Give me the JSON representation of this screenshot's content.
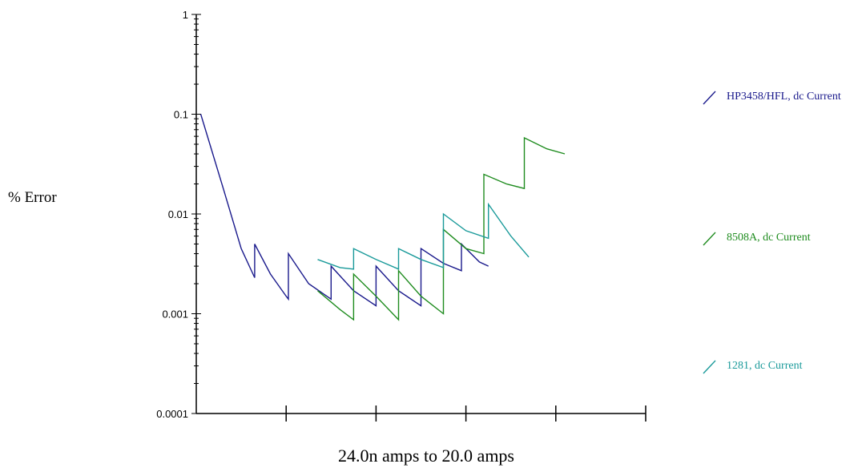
{
  "chart_data": {
    "type": "line",
    "ylabel": "% Error",
    "xlabel": "24.0n amps to 20.0 amps",
    "yscale": "log",
    "ylim": [
      0.0001,
      1
    ],
    "yticks": [
      "1",
      "0.1",
      "0.01",
      "0.001",
      "0.0001"
    ],
    "xlim": [
      0,
      10
    ],
    "grid": false,
    "legend_position": "right",
    "series": [
      {
        "name": "HP3458/HFL, dc Current",
        "color": "#1a1a8c",
        "points": [
          [
            0.1,
            0.1
          ],
          [
            0.6,
            0.018
          ],
          [
            1.0,
            0.0045
          ],
          [
            1.3,
            0.0023
          ],
          [
            1.3,
            0.005
          ],
          [
            1.65,
            0.0025
          ],
          [
            2.0,
            0.0015
          ],
          [
            2.05,
            0.0014
          ],
          [
            2.05,
            0.004
          ],
          [
            2.5,
            0.002
          ],
          [
            3.0,
            0.0014
          ],
          [
            3.0,
            0.003
          ],
          [
            3.5,
            0.0017
          ],
          [
            4.0,
            0.0012
          ],
          [
            4.0,
            0.003
          ],
          [
            4.5,
            0.0017
          ],
          [
            5.0,
            0.0012
          ],
          [
            5.0,
            0.0045
          ],
          [
            5.5,
            0.0032
          ],
          [
            5.9,
            0.0027
          ],
          [
            5.9,
            0.005
          ],
          [
            6.3,
            0.0033
          ],
          [
            6.5,
            0.003
          ]
        ]
      },
      {
        "name": "8508A, dc Current",
        "color": "#1f8c1f",
        "points": [
          [
            2.7,
            0.0017
          ],
          [
            3.2,
            0.0011
          ],
          [
            3.5,
            0.00087
          ],
          [
            3.5,
            0.0025
          ],
          [
            4.0,
            0.0015
          ],
          [
            4.5,
            0.00087
          ],
          [
            4.5,
            0.0027
          ],
          [
            5.0,
            0.0015
          ],
          [
            5.5,
            0.001
          ],
          [
            5.5,
            0.007
          ],
          [
            6.0,
            0.0045
          ],
          [
            6.4,
            0.004
          ],
          [
            6.4,
            0.025
          ],
          [
            6.9,
            0.02
          ],
          [
            7.3,
            0.018
          ],
          [
            7.3,
            0.058
          ],
          [
            7.8,
            0.045
          ],
          [
            8.2,
            0.04
          ]
        ]
      },
      {
        "name": "1281, dc Current",
        "color": "#1a9a9a",
        "points": [
          [
            2.7,
            0.0035
          ],
          [
            3.2,
            0.0029
          ],
          [
            3.5,
            0.0028
          ],
          [
            3.5,
            0.0045
          ],
          [
            4.0,
            0.0035
          ],
          [
            4.5,
            0.0028
          ],
          [
            4.5,
            0.0045
          ],
          [
            5.0,
            0.0035
          ],
          [
            5.5,
            0.0029
          ],
          [
            5.5,
            0.01
          ],
          [
            6.0,
            0.0068
          ],
          [
            6.5,
            0.0057
          ],
          [
            6.5,
            0.0125
          ],
          [
            7.0,
            0.006
          ],
          [
            7.4,
            0.0037
          ]
        ]
      }
    ]
  }
}
